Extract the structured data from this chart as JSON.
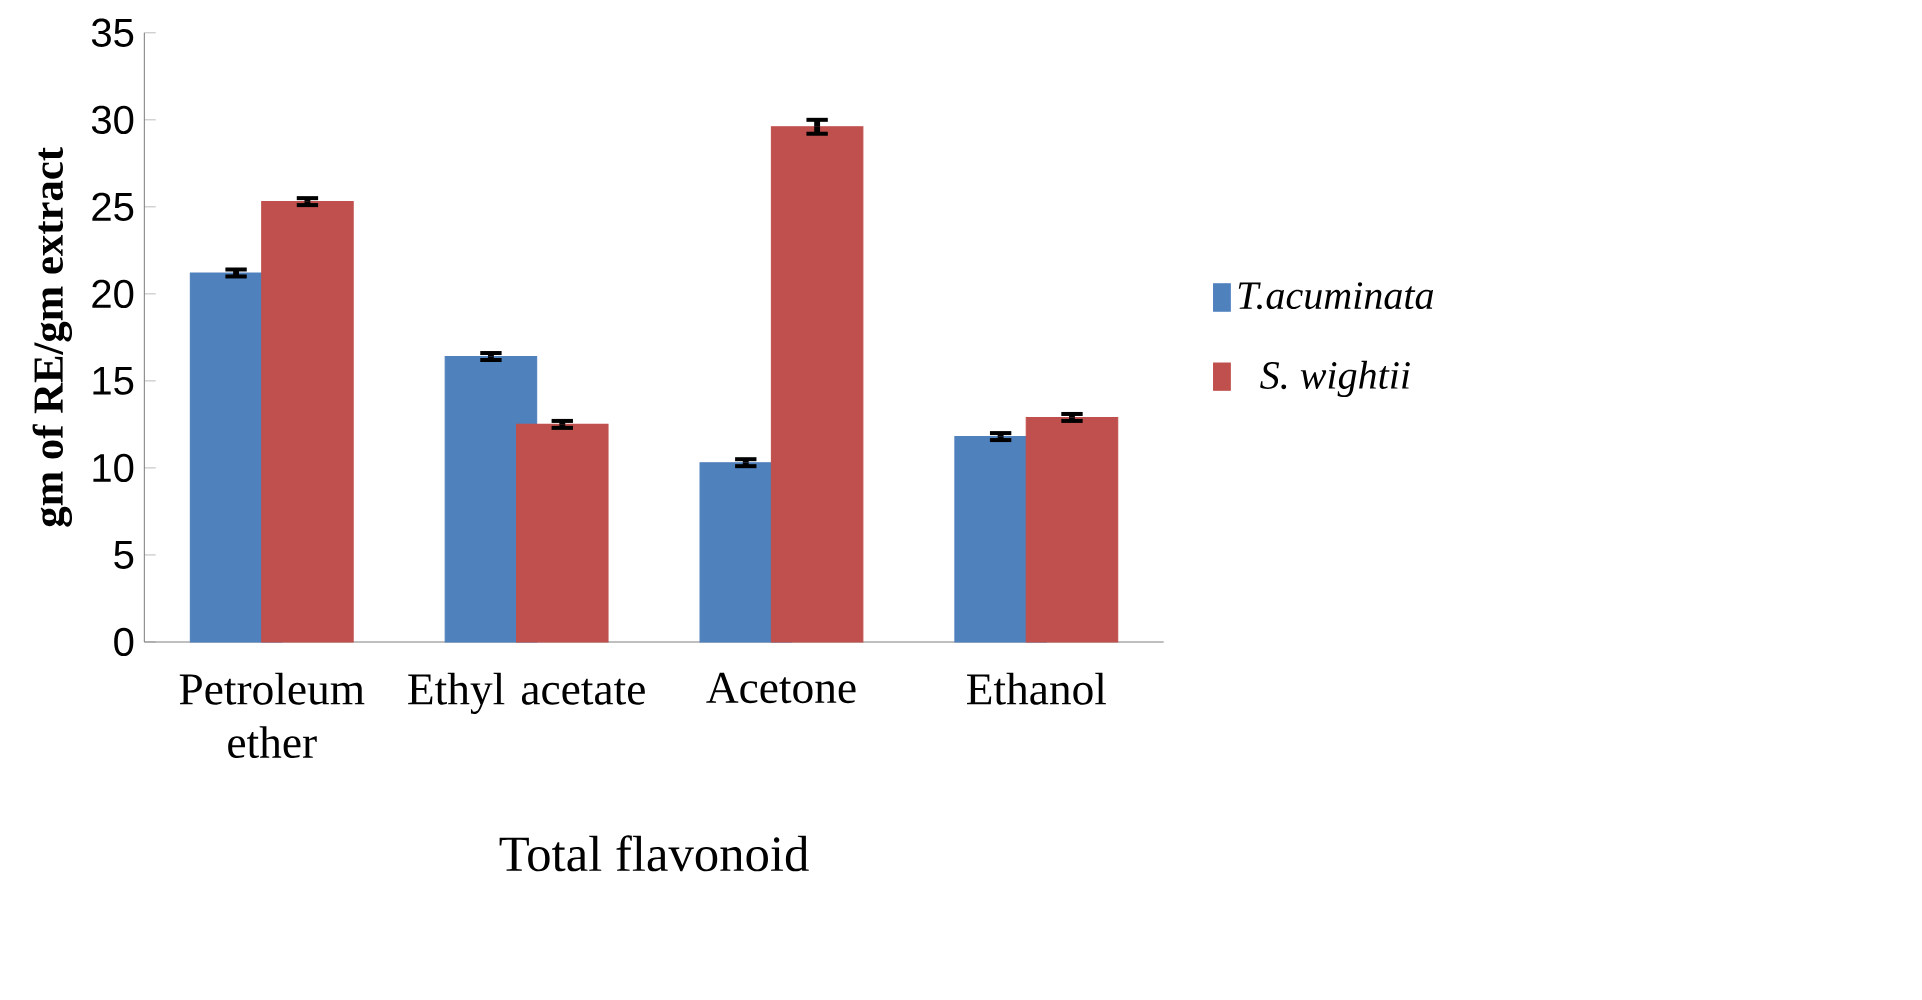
{
  "chart_data": {
    "type": "bar",
    "xlabel": "Total flavonoid",
    "ylabel": "gm of RE/gm extract",
    "categories": [
      "Petroleum ether",
      "Ethyl acetate",
      "Acetone",
      "Ethanol"
    ],
    "series": [
      {
        "name": "T.acuminata",
        "color": "#4f81bd",
        "values": [
          21.2,
          16.4,
          10.3,
          11.8
        ],
        "errors": [
          0.2,
          0.2,
          0.2,
          0.2
        ]
      },
      {
        "name": "S. wightii",
        "color": "#c0504d",
        "values": [
          25.3,
          12.5,
          29.6,
          12.9
        ],
        "errors": [
          0.2,
          0.2,
          0.4,
          0.2
        ]
      }
    ],
    "ylim": [
      0,
      35
    ],
    "yticks": [
      0,
      5,
      10,
      15,
      20,
      25,
      30,
      35
    ],
    "grid": false,
    "legend": "right"
  }
}
